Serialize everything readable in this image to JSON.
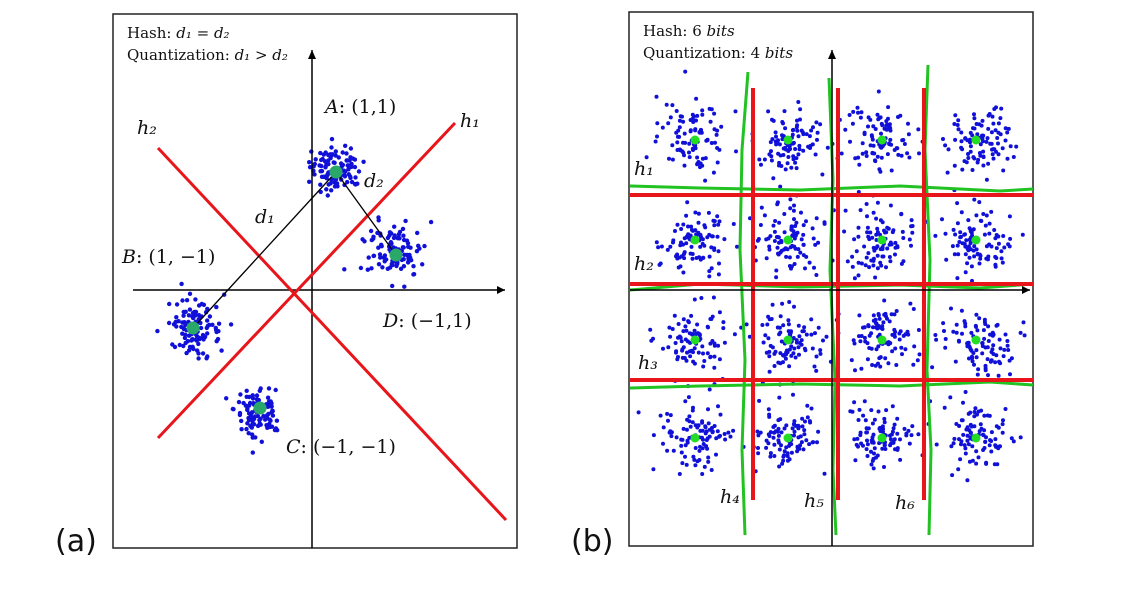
{
  "panel_a": {
    "tag": "(a)",
    "header_line1_prefix": "Hash: ",
    "header_line1_math": "d₁ = d₂",
    "header_line2_prefix": "Quantization: ",
    "header_line2_math": "d₁ > d₂",
    "points": [
      {
        "name": "A",
        "coords": "(1,1)"
      },
      {
        "name": "B",
        "coords": "(1, −1)"
      },
      {
        "name": "C",
        "coords": "(−1, −1)"
      },
      {
        "name": "D",
        "coords": "(−1,1)"
      }
    ],
    "hyperplane_labels": [
      "h₂",
      "h₁"
    ],
    "distance_labels": [
      "d₁",
      "d₂"
    ]
  },
  "panel_b": {
    "tag": "(b)",
    "header_line1_prefix": "Hash: 6 ",
    "header_line1_unit": "bits",
    "header_line2_prefix": "Quantization: 4 ",
    "header_line2_unit": "bits",
    "hyperplane_labels": [
      "h₁",
      "h₂",
      "h₃",
      "h₄",
      "h₅",
      "h₆"
    ]
  },
  "colors": {
    "scatter": "#1010d8",
    "center_a": "#2aa86a",
    "center_b": "#22dd22",
    "red_line": "#e8151b",
    "green_line": "#22c222",
    "axis": "#000000"
  }
}
